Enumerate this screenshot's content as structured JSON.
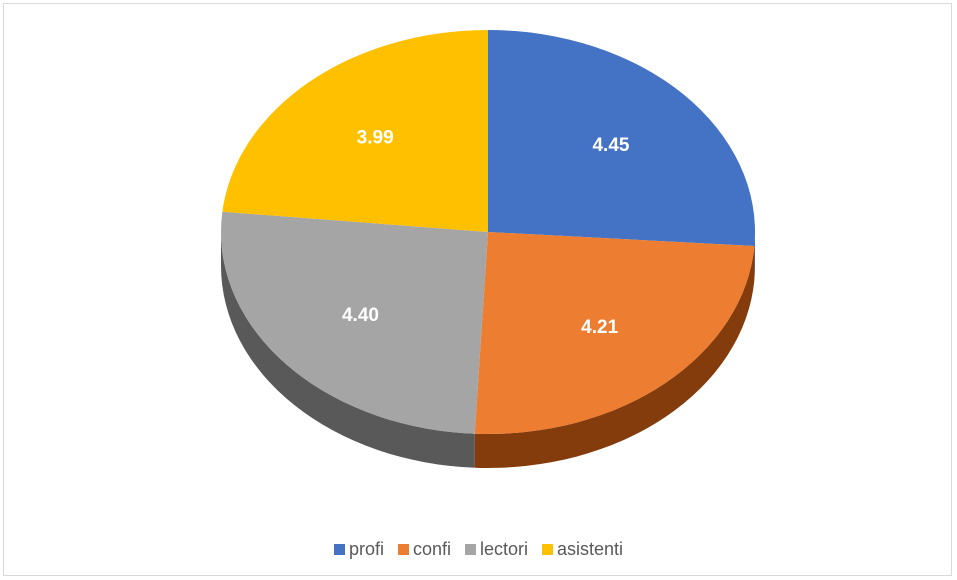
{
  "chart_data": {
    "type": "pie",
    "style": "3d",
    "categories": [
      "profi",
      "confi",
      "lectori",
      "asistenti"
    ],
    "values": [
      4.45,
      4.21,
      4.4,
      3.99
    ],
    "data_labels": [
      "4.45",
      "4.21",
      "4.40",
      "3.99"
    ],
    "colors": [
      "#4472C4",
      "#ED7D31",
      "#A5A5A5",
      "#FFC000"
    ],
    "side_colors": [
      "#2F5597",
      "#843C0C",
      "#595959",
      "#BF9000"
    ],
    "title": "",
    "legend_position": "bottom"
  }
}
